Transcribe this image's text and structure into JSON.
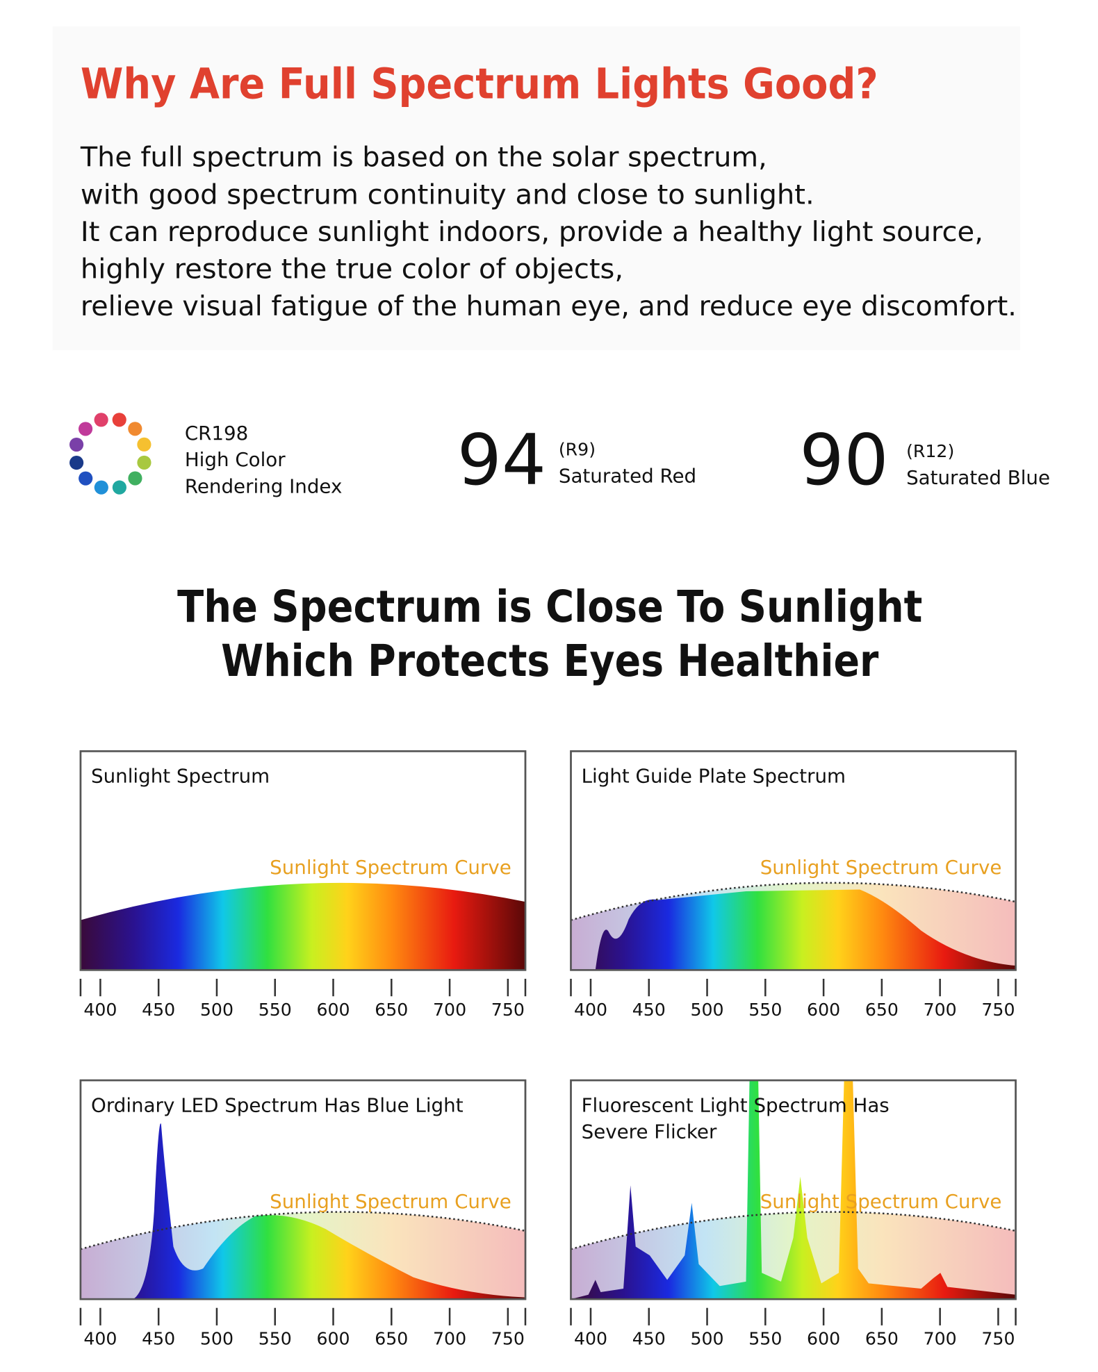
{
  "header": {
    "title": "Why Are Full Spectrum Lights Good?",
    "lines": [
      "The full spectrum is based on the solar spectrum,",
      "with good spectrum continuity and close to sunlight.",
      "It can reproduce sunlight indoors, provide a healthy light source,",
      "highly restore the true color of objects,",
      "relieve visual fatigue of the human eye, and reduce eye discomfort."
    ]
  },
  "stats": [
    {
      "lines": [
        "CR198",
        "High Color",
        "Rendering Index"
      ]
    },
    {
      "value": 94,
      "sub": "(R9)",
      "label": "Saturated Red"
    },
    {
      "value": 90,
      "sub": "(R12)",
      "label": "Saturated Blue"
    }
  ],
  "headline": [
    "The Spectrum is Close To Sunlight",
    "Which Protects Eyes Healthier"
  ],
  "axis": {
    "xlim": [
      383,
      765
    ],
    "xticks": [
      400,
      450,
      500,
      550,
      600,
      650,
      700,
      750
    ]
  },
  "panels": [
    {
      "title": [
        "Sunlight Spectrum"
      ],
      "curve_label": "Sunlight Spectrum Curve"
    },
    {
      "title": [
        "Light Guide Plate Spectrum"
      ],
      "curve_label": "Sunlight Spectrum Curve"
    },
    {
      "title": [
        "Ordinary LED Spectrum Has Blue Light"
      ],
      "curve_label": "Sunlight Spectrum Curve"
    },
    {
      "title": [
        "Fluorescent Light Spectrum Has",
        "Severe Flicker"
      ],
      "curve_label": "Sunlight Spectrum Curve"
    }
  ]
}
